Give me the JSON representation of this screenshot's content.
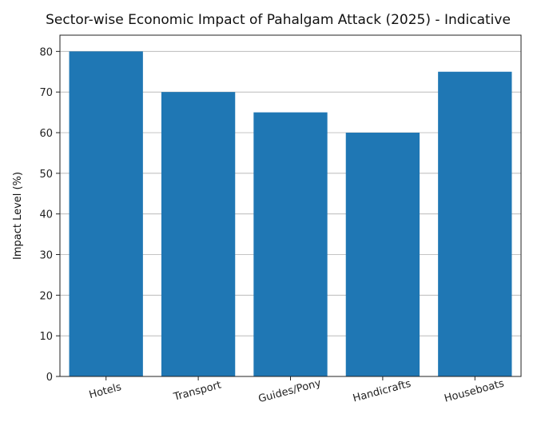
{
  "chart_data": {
    "type": "bar",
    "title": "Sector-wise Economic Impact of Pahalgam Attack (2025) - Indicative",
    "xlabel": "",
    "ylabel": "Impact Level (%)",
    "categories": [
      "Hotels",
      "Transport",
      "Guides/Pony",
      "Handicrafts",
      "Houseboats"
    ],
    "values": [
      80,
      70,
      65,
      60,
      75
    ],
    "ylim": [
      0,
      84
    ],
    "yticks": [
      0,
      10,
      20,
      30,
      40,
      50,
      60,
      70,
      80
    ],
    "grid": "horizontal",
    "bar_color": "#1f77b4",
    "legend": "none"
  }
}
